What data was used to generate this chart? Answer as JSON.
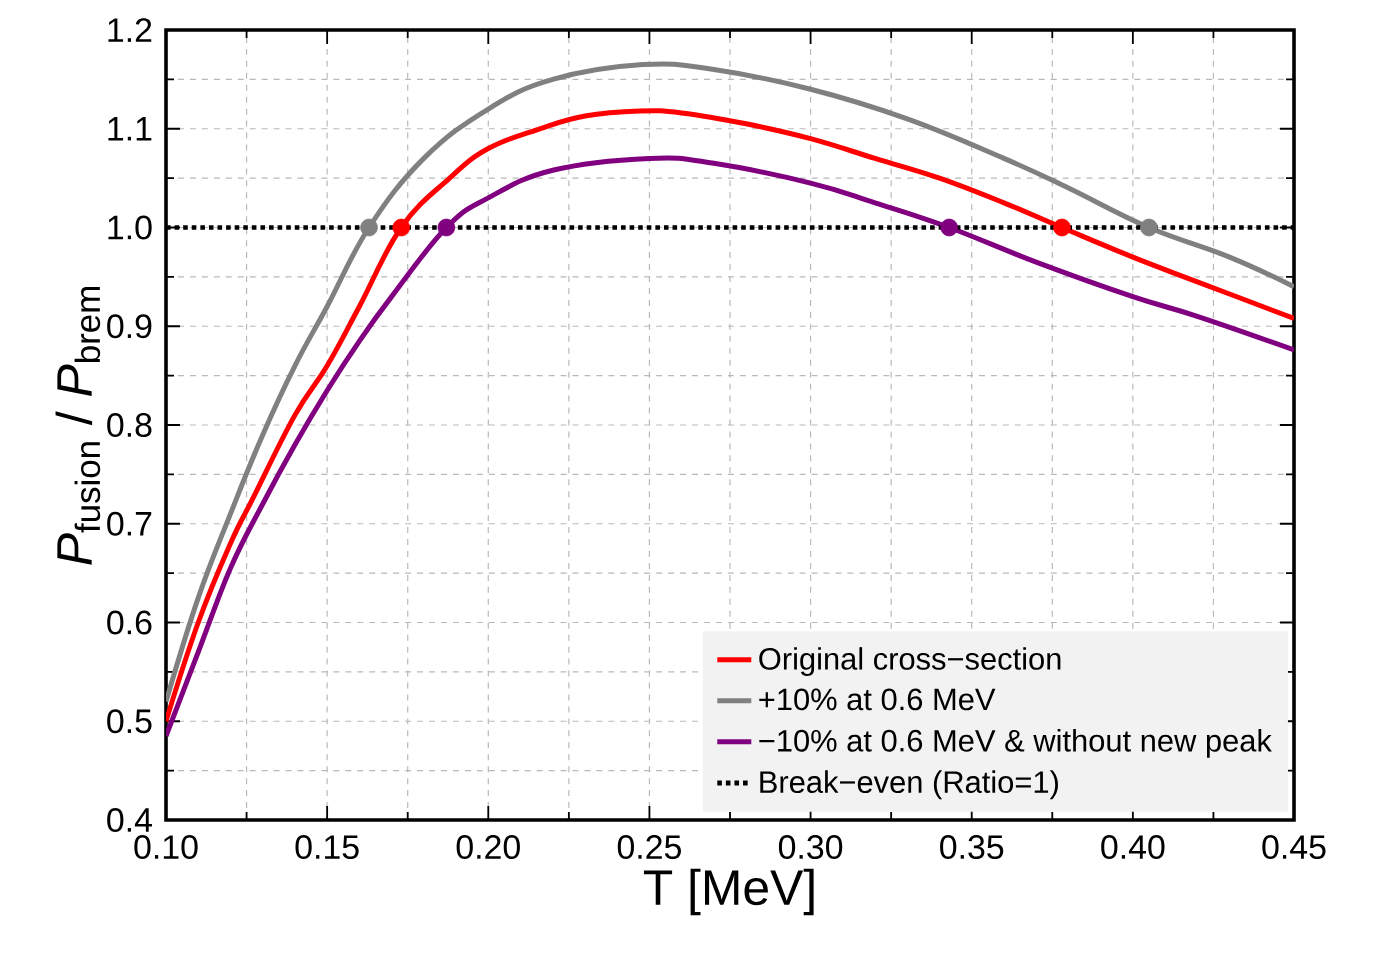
{
  "chart_data": {
    "type": "line",
    "xlabel": "T   [MeV]",
    "ylabel": "*P*$_{fusion}$ / *P*$_{brem}$",
    "xlim": [
      0.1,
      0.45
    ],
    "ylim": [
      0.4,
      1.2
    ],
    "xticks": [
      {
        "value": 0.1,
        "label": "0.10"
      },
      {
        "value": 0.15,
        "label": "0.15"
      },
      {
        "value": 0.2,
        "label": "0.20"
      },
      {
        "value": 0.25,
        "label": "0.25"
      },
      {
        "value": 0.3,
        "label": "0.30"
      },
      {
        "value": 0.35,
        "label": "0.35"
      },
      {
        "value": 0.4,
        "label": "0.40"
      },
      {
        "value": 0.45,
        "label": "0.45"
      }
    ],
    "yticks": [
      0.4,
      0.5,
      0.6,
      0.7,
      0.8,
      0.9,
      {
        "value": 1.0,
        "label": "1.0"
      },
      1.1,
      {
        "value": 1.2,
        "label": "1.2"
      }
    ],
    "grid": true,
    "legend": "bottom right",
    "series": [
      {
        "name": "Original cross−section",
        "color": "#ff0000",
        "x": [
          0.1,
          0.11,
          0.12,
          0.127,
          0.14,
          0.15,
          0.16,
          0.173,
          0.188,
          0.2,
          0.216,
          0.23,
          0.247,
          0.26,
          0.28,
          0.3,
          0.32,
          0.34,
          0.36,
          0.378,
          0.4,
          0.42,
          0.45
        ],
        "values": [
          0.5,
          0.6,
          0.68,
          0.726,
          0.81,
          0.86,
          0.92,
          1.0,
          1.05,
          1.08,
          1.1,
          1.113,
          1.118,
          1.116,
          1.105,
          1.09,
          1.07,
          1.05,
          1.025,
          1.0,
          0.97,
          0.945,
          0.908
        ]
      },
      {
        "name": "+10% at 0.6 MeV",
        "color": "#808080",
        "x": [
          0.1,
          0.11,
          0.12,
          0.13,
          0.14,
          0.15,
          0.163,
          0.18,
          0.2,
          0.22,
          0.248,
          0.27,
          0.3,
          0.33,
          0.36,
          0.38,
          0.405,
          0.43,
          0.45
        ],
        "values": [
          0.52,
          0.625,
          0.71,
          0.79,
          0.86,
          0.92,
          1.0,
          1.07,
          1.12,
          1.15,
          1.165,
          1.16,
          1.14,
          1.11,
          1.07,
          1.04,
          1.0,
          0.97,
          0.94
        ]
      },
      {
        "name": "−10% at 0.6 MeV & without new peak",
        "color": "#800080",
        "x": [
          0.1,
          0.11,
          0.12,
          0.13,
          0.14,
          0.15,
          0.16,
          0.17,
          0.187,
          0.2,
          0.22,
          0.25,
          0.27,
          0.3,
          0.32,
          0.343,
          0.37,
          0.4,
          0.42,
          0.45
        ],
        "values": [
          0.485,
          0.57,
          0.655,
          0.72,
          0.78,
          0.835,
          0.885,
          0.93,
          1.0,
          1.03,
          1.058,
          1.07,
          1.065,
          1.045,
          1.025,
          1.0,
          0.965,
          0.93,
          0.91,
          0.876
        ]
      },
      {
        "type": "scatter",
        "marker": "circle",
        "color": "#808080",
        "x": [
          0.163,
          0.405
        ],
        "values": [
          1.0,
          1.0
        ]
      },
      {
        "type": "scatter",
        "marker": "circle",
        "color": "#ff0000",
        "x": [
          0.173,
          0.378
        ],
        "values": [
          1.0,
          1.0
        ]
      },
      {
        "type": "scatter",
        "marker": "circle",
        "color": "#800080",
        "x": [
          0.187,
          0.343
        ],
        "values": [
          1.0,
          1.0
        ]
      }
    ],
    "ref_lines": [
      {
        "axis": "y",
        "value": 1.0,
        "label": "Break−even (Ratio=1)",
        "color": "#000000",
        "line_style": "dotted"
      }
    ]
  }
}
